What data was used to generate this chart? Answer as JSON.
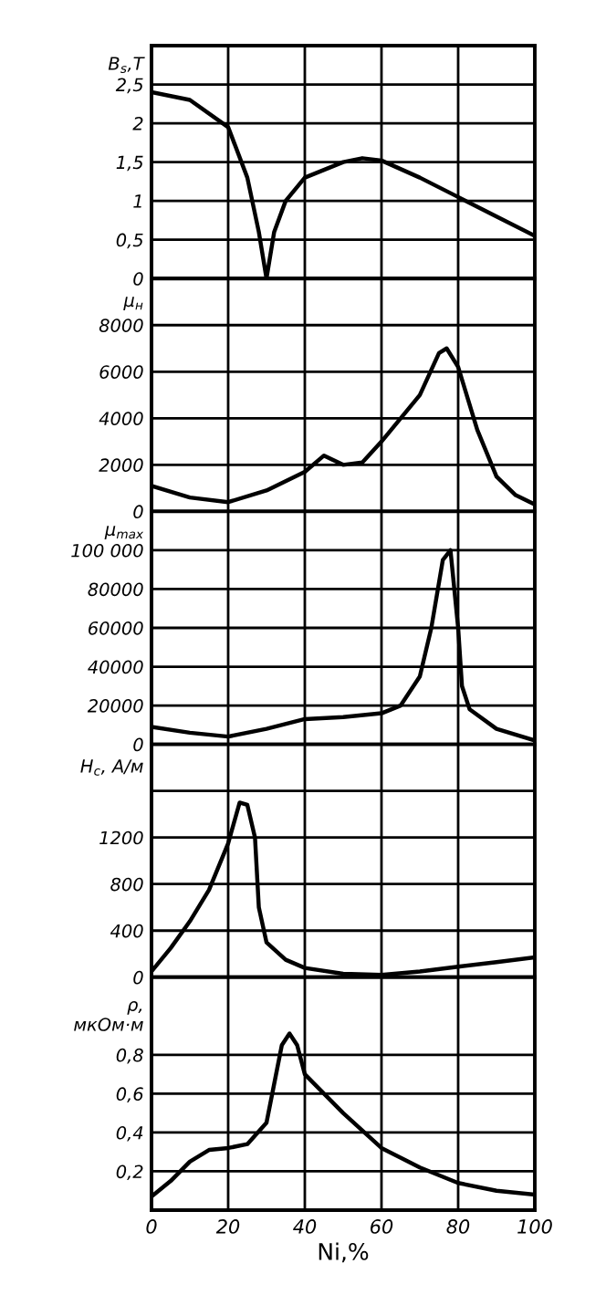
{
  "chart_data": [
    {
      "type": "line",
      "ylabel": "B$_{s}$,T",
      "x": [
        0,
        10,
        20,
        25,
        28,
        30,
        32,
        35,
        40,
        50,
        55,
        60,
        70,
        80,
        90,
        100
      ],
      "series": [
        {
          "color": "#000000",
          "values": [
            2.4,
            2.3,
            1.95,
            1.3,
            0.6,
            0.0,
            0.6,
            1.0,
            1.3,
            1.5,
            1.55,
            1.52,
            1.3,
            1.05,
            0.8,
            0.55
          ]
        }
      ],
      "xlim": [
        0,
        100
      ],
      "xticks": [
        0,
        20,
        40,
        60,
        80,
        100
      ],
      "ylim": [
        0,
        3
      ],
      "yticks": [
        0,
        {
          "value": 0.5,
          "label": "0,5"
        },
        1,
        {
          "value": 1.5,
          "label": "1,5"
        },
        2,
        {
          "value": 2.5,
          "label": "2,5"
        }
      ],
      "grid": true,
      "tick_labels": "y",
      "marker": "none",
      "line_style": "solid"
    },
    {
      "type": "line",
      "ylabel": "μ$_{н}$",
      "x": [
        0,
        10,
        20,
        30,
        40,
        45,
        50,
        55,
        60,
        70,
        75,
        77,
        80,
        85,
        90,
        95,
        100
      ],
      "series": [
        {
          "color": "#000000",
          "values": [
            1100,
            600,
            400,
            900,
            1700,
            2400,
            2000,
            2100,
            3000,
            5000,
            6800,
            7000,
            6200,
            3500,
            1500,
            700,
            300
          ]
        }
      ],
      "xlim": [
        0,
        100
      ],
      "xticks": [
        0,
        20,
        40,
        60,
        80,
        100
      ],
      "ylim": [
        0,
        10000
      ],
      "yticks": [
        0,
        2000,
        4000,
        6000,
        8000
      ],
      "grid": true,
      "tick_labels": "y",
      "marker": "none",
      "line_style": "solid"
    },
    {
      "type": "line",
      "ylabel": "μ$_{max}$",
      "x": [
        0,
        10,
        20,
        30,
        40,
        50,
        60,
        65,
        70,
        73,
        76,
        78,
        80,
        81,
        83,
        90,
        100
      ],
      "series": [
        {
          "color": "#000000",
          "values": [
            9000,
            6000,
            4000,
            8000,
            13000,
            14000,
            16000,
            20000,
            35000,
            60000,
            95000,
            100000,
            60000,
            30000,
            18000,
            8000,
            2000
          ]
        }
      ],
      "xlim": [
        0,
        100
      ],
      "xticks": [
        0,
        20,
        40,
        60,
        80,
        100
      ],
      "ylim": [
        0,
        120000
      ],
      "yticks": [
        0,
        20000,
        40000,
        60000,
        80000,
        {
          "value": 100000,
          "label": "100 000"
        }
      ],
      "grid": true,
      "tick_labels": "y",
      "marker": "none",
      "line_style": "solid"
    },
    {
      "type": "line",
      "ylabel": "H$_{c}$, А/м",
      "x": [
        0,
        5,
        10,
        15,
        20,
        23,
        25,
        27,
        28,
        30,
        35,
        40,
        50,
        60,
        70,
        80,
        90,
        100
      ],
      "series": [
        {
          "color": "#000000",
          "values": [
            50,
            250,
            480,
            750,
            1150,
            1500,
            1480,
            1200,
            600,
            300,
            150,
            80,
            30,
            20,
            50,
            90,
            130,
            170
          ]
        }
      ],
      "xlim": [
        0,
        100
      ],
      "xticks": [
        0,
        20,
        40,
        60,
        80,
        100
      ],
      "ylim": [
        0,
        2000
      ],
      "yticks": [
        0,
        400,
        800,
        1200,
        {
          "value": 1600,
          "label": null
        }
      ],
      "grid": true,
      "tick_labels": "y",
      "marker": "none",
      "line_style": "solid"
    },
    {
      "type": "line",
      "ylabel": "ρ,\nмкОм·м",
      "xlabel": "Ni,%",
      "x": [
        0,
        5,
        10,
        15,
        20,
        25,
        30,
        32,
        34,
        36,
        38,
        40,
        50,
        60,
        70,
        80,
        90,
        100
      ],
      "series": [
        {
          "color": "#000000",
          "values": [
            0.07,
            0.15,
            0.25,
            0.31,
            0.32,
            0.34,
            0.45,
            0.65,
            0.85,
            0.91,
            0.85,
            0.7,
            0.5,
            0.32,
            0.22,
            0.14,
            0.1,
            0.08
          ]
        }
      ],
      "xlim": [
        0,
        100
      ],
      "xticks": [
        0,
        20,
        40,
        60,
        80,
        100
      ],
      "ylim": [
        0,
        1.2
      ],
      "yticks": [
        {
          "value": 0,
          "label": null
        },
        {
          "value": 0.2,
          "label": "0,2"
        },
        {
          "value": 0.4,
          "label": "0,4"
        },
        {
          "value": 0.6,
          "label": "0,6"
        },
        {
          "value": 0.8,
          "label": "0,8"
        }
      ],
      "grid": true,
      "marker": "none",
      "line_style": "solid"
    }
  ]
}
